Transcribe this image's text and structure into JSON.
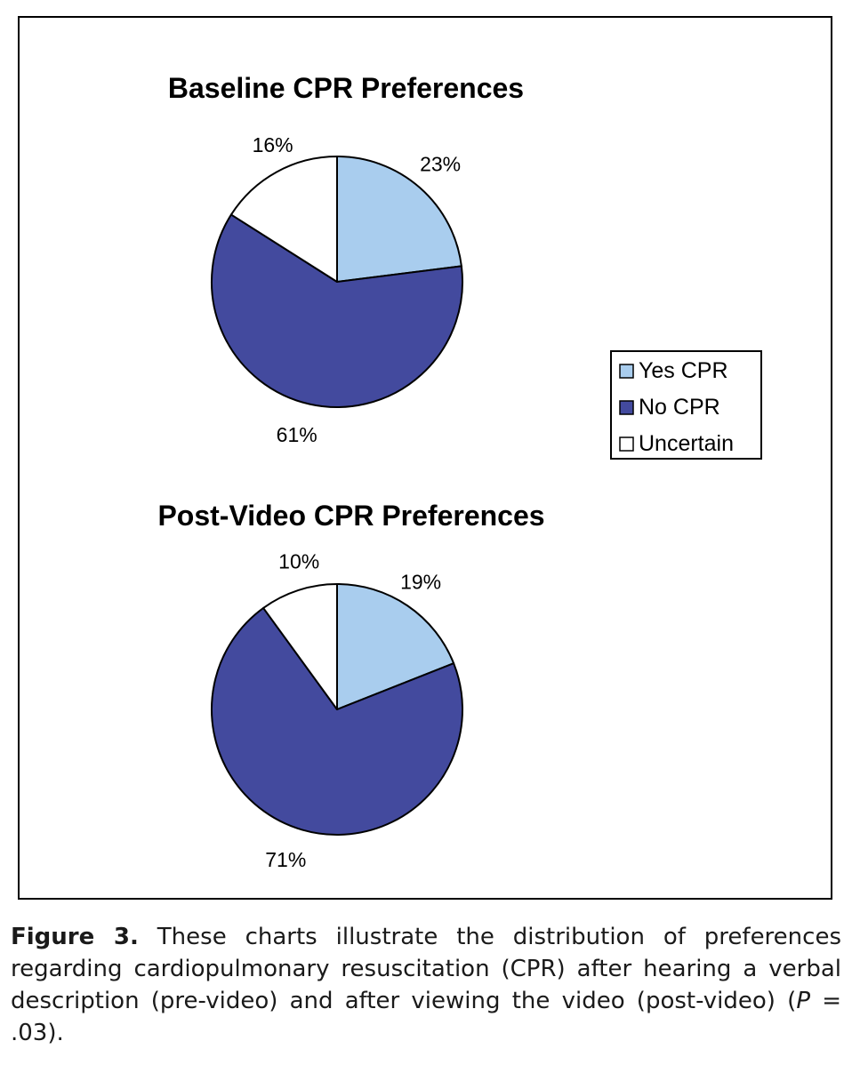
{
  "chart_data": [
    {
      "type": "pie",
      "title": "Baseline CPR Preferences",
      "categories": [
        "Yes CPR",
        "No CPR",
        "Uncertain"
      ],
      "values": [
        23,
        61,
        16
      ],
      "labels": [
        "23%",
        "61%",
        "16%"
      ]
    },
    {
      "type": "pie",
      "title": "Post-Video CPR Preferences",
      "categories": [
        "Yes CPR",
        "No CPR",
        "Uncertain"
      ],
      "values": [
        19,
        71,
        10
      ],
      "labels": [
        "19%",
        "71%",
        "10%"
      ]
    }
  ],
  "legend": {
    "items": [
      {
        "label": "Yes CPR",
        "color": "#a9cdee"
      },
      {
        "label": "No CPR",
        "color": "#434a9e"
      },
      {
        "label": "Uncertain",
        "color": "#ffffff"
      }
    ]
  },
  "caption": {
    "figure_label": "Figure 3.",
    "text_before": " These charts illustrate the distribution of preferences regarding cardiopulmonary resuscitation (CPR) after hearing a verbal description (pre-video) and after viewing the video (post-video) (",
    "p_symbol": "P",
    "text_after": " = .03)."
  }
}
